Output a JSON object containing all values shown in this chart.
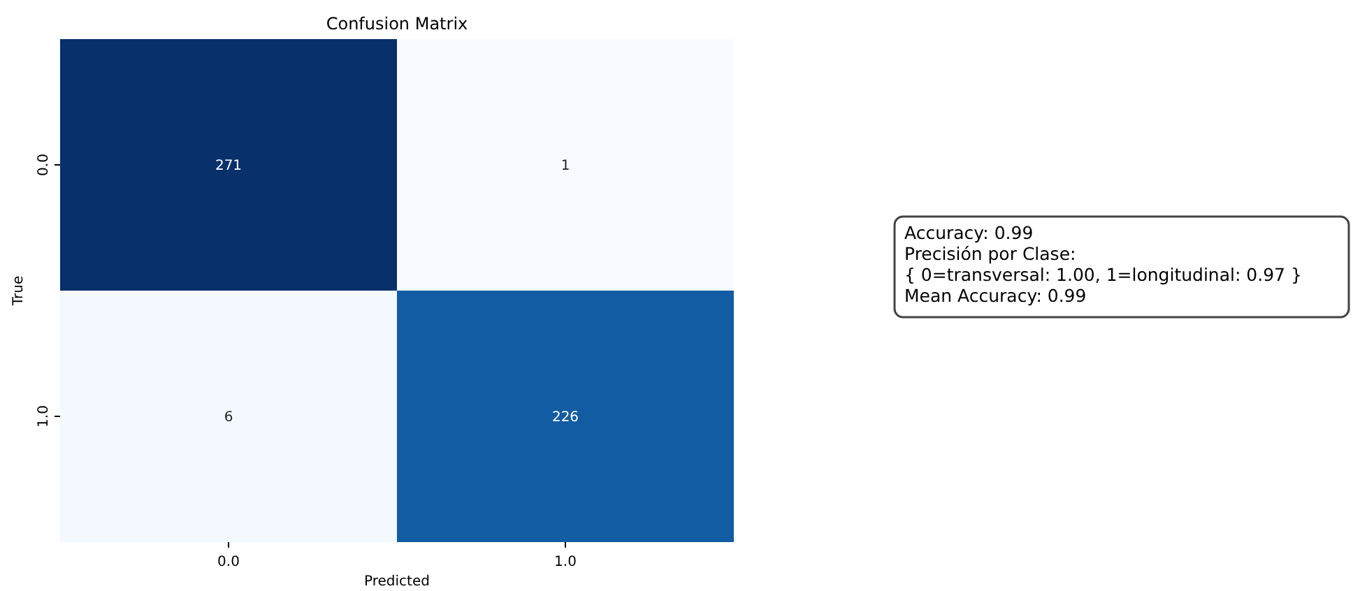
{
  "chart_data": {
    "type": "heatmap",
    "title": "Confusion Matrix",
    "xlabel": "Predicted",
    "ylabel": "True",
    "categories": [
      "0.0",
      "1.0"
    ],
    "y_categories": [
      "0.0",
      "1.0"
    ],
    "data_labels": true,
    "cells": [
      [
        271,
        1
      ],
      [
        6,
        226
      ]
    ],
    "annotations": [
      "Accuracy: 0.99",
      "Precisión por Clase:",
      "{ 0=transversal: 1.00, 1=longitudinal: 0.97 }",
      "Mean Accuracy: 0.99"
    ]
  }
}
